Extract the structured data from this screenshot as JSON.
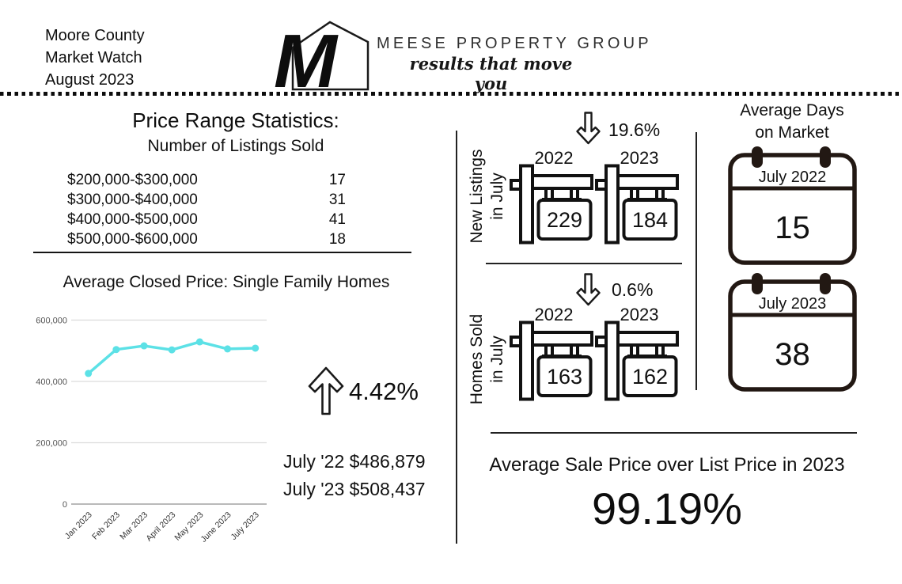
{
  "header": {
    "line1": "Moore County",
    "line2": "Market Watch",
    "line3": "August 2023",
    "brand": "MEESE PROPERTY GROUP",
    "tagline": "results that move you",
    "monogram": "M"
  },
  "price_stats": {
    "title": "Price Range Statistics:",
    "subtitle": "Number of Listings Sold",
    "rows": [
      {
        "range": "$200,000-$300,000",
        "count": "17"
      },
      {
        "range": "$300,000-$400,000",
        "count": "31"
      },
      {
        "range": "$400,000-$500,000",
        "count": "41"
      },
      {
        "range": "$500,000-$600,000",
        "count": "18"
      }
    ]
  },
  "closed_price": {
    "title": "Average Closed Price: Single Family Homes",
    "change_pct": "4.42%",
    "line_july22": "July '22 $486,879",
    "line_july23": "July '23 $508,437"
  },
  "chart_data": {
    "type": "line",
    "title": "Average Closed Price: Single Family Homes",
    "x": [
      "Jan 2023",
      "Feb 2023",
      "Mar 2023",
      "April 2023",
      "May 2023",
      "June 2023",
      "July 2023"
    ],
    "series": [
      {
        "name": "Average Closed Price",
        "values": [
          426000,
          504000,
          516000,
          503000,
          529000,
          506000,
          508437
        ]
      }
    ],
    "ylim": [
      0,
      640000
    ],
    "yticks": [
      0,
      200000,
      400000,
      600000
    ],
    "ytick_labels": [
      "0",
      "200,000",
      "400,000",
      "600,000"
    ],
    "line_color": "#5ce1e6",
    "grid": true,
    "legend": false
  },
  "new_listings": {
    "label_line1": "New Listings",
    "label_line2": "in July",
    "change_pct": "19.6%",
    "year_left": "2022",
    "year_right": "2023",
    "value_left": "229",
    "value_right": "184"
  },
  "homes_sold": {
    "label_line1": "Homes Sold",
    "label_line2": "in July",
    "change_pct": "0.6%",
    "year_left": "2022",
    "year_right": "2023",
    "value_left": "163",
    "value_right": "162"
  },
  "days_on_market": {
    "title_line1": "Average Days",
    "title_line2": "on Market",
    "calendars": [
      {
        "label": "July 2022",
        "value": "15"
      },
      {
        "label": "July 2023",
        "value": "38"
      }
    ]
  },
  "sale_over_list": {
    "title": "Average Sale Price over List Price in 2023",
    "value": "99.19%"
  },
  "colors": {
    "accent": "#5ce1e6",
    "ink": "#111111",
    "grid": "#dcdcdc",
    "zero_line": "#8f8f8f",
    "calendar_stroke": "#221813"
  }
}
